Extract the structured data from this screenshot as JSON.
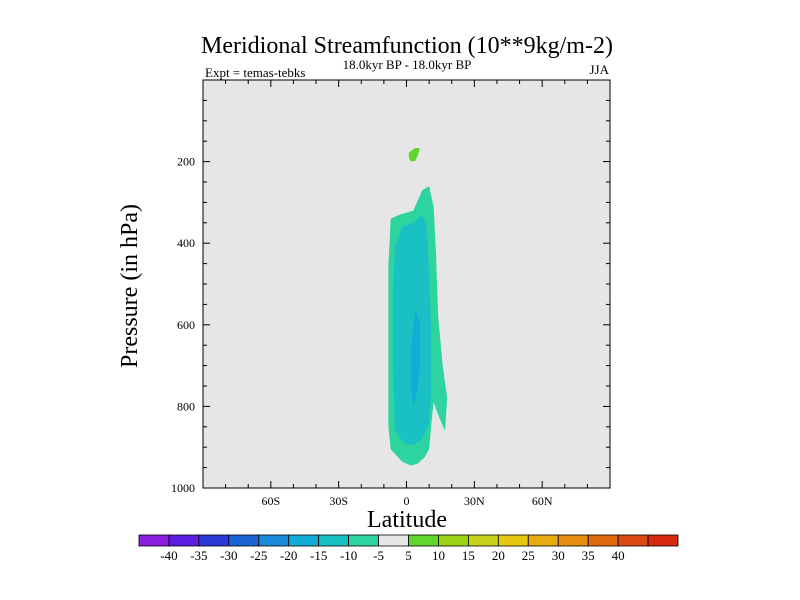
{
  "chart_data": {
    "type": "filled-contour",
    "title": "Meridional Streamfunction (10**9kg/m-2)",
    "subtitle_left": "Expt = temas-tebks",
    "subtitle_center": "18.0kyr BP - 18.0kyr BP",
    "subtitle_right": "JJA",
    "xlabel": "Latitude",
    "ylabel": "Pressure (in hPa)",
    "xlim": [
      -90,
      90
    ],
    "ylim": [
      1000,
      0
    ],
    "x_ticks": [
      {
        "value": -60,
        "label": "60S"
      },
      {
        "value": -30,
        "label": "30S"
      },
      {
        "value": 0,
        "label": "0"
      },
      {
        "value": 30,
        "label": "30N"
      },
      {
        "value": 60,
        "label": "60N"
      }
    ],
    "y_ticks": [
      {
        "value": 200,
        "label": "200"
      },
      {
        "value": 400,
        "label": "400"
      },
      {
        "value": 600,
        "label": "600"
      },
      {
        "value": 800,
        "label": "800"
      },
      {
        "value": 1000,
        "label": "1000"
      }
    ],
    "background_fill": "#e6e6e6",
    "regions": [
      {
        "name": "positive-5-10",
        "color": "#62d62e",
        "points": [
          [
            1,
            178
          ],
          [
            4,
            166
          ],
          [
            6,
            168
          ],
          [
            5,
            184
          ],
          [
            4,
            198
          ],
          [
            2,
            200
          ],
          [
            1,
            190
          ]
        ]
      },
      {
        "name": "negative-5-10",
        "color": "#2ed4a0",
        "points": [
          [
            -7,
            340
          ],
          [
            -3,
            330
          ],
          [
            3,
            320
          ],
          [
            7,
            270
          ],
          [
            10,
            260
          ],
          [
            12,
            310
          ],
          [
            13,
            420
          ],
          [
            14,
            580
          ],
          [
            16,
            700
          ],
          [
            18,
            780
          ],
          [
            17,
            860
          ],
          [
            14,
            820
          ],
          [
            12,
            790
          ],
          [
            11,
            840
          ],
          [
            10,
            905
          ],
          [
            8,
            925
          ],
          [
            5,
            940
          ],
          [
            2,
            945
          ],
          [
            -2,
            935
          ],
          [
            -7,
            905
          ],
          [
            -8,
            850
          ],
          [
            -8,
            700
          ],
          [
            -8,
            560
          ],
          [
            -8,
            455
          ]
        ]
      },
      {
        "name": "negative-10-15",
        "color": "#19c0c4",
        "points": [
          [
            -5,
            410
          ],
          [
            -2,
            360
          ],
          [
            3,
            350
          ],
          [
            7,
            330
          ],
          [
            9,
            360
          ],
          [
            10,
            480
          ],
          [
            11,
            620
          ],
          [
            11,
            760
          ],
          [
            10,
            840
          ],
          [
            7,
            880
          ],
          [
            3,
            895
          ],
          [
            -1,
            890
          ],
          [
            -5,
            860
          ],
          [
            -6,
            700
          ],
          [
            -6,
            520
          ]
        ]
      },
      {
        "name": "negative-15-20",
        "color": "#13acd8",
        "points": [
          [
            4,
            560
          ],
          [
            6,
            600
          ],
          [
            6,
            680
          ],
          [
            5,
            760
          ],
          [
            3,
            800
          ],
          [
            2,
            750
          ],
          [
            2,
            660
          ]
        ]
      }
    ],
    "colorbar": {
      "colors": [
        "#8a1fe0",
        "#5a1ee0",
        "#2e3ad8",
        "#1c64d4",
        "#1a8ad8",
        "#13acd8",
        "#19c0c4",
        "#2ed4a0",
        "#e6e6e6",
        "#62d62e",
        "#9ad414",
        "#c8d21a",
        "#e6c810",
        "#e8ac10",
        "#e68e10",
        "#e06a10",
        "#dc4a12",
        "#d82a10"
      ],
      "labels": [
        "-40",
        "-35",
        "-30",
        "-25",
        "-20",
        "-15",
        "-10",
        "-5",
        "5",
        "10",
        "15",
        "20",
        "25",
        "30",
        "35",
        "40"
      ]
    }
  }
}
